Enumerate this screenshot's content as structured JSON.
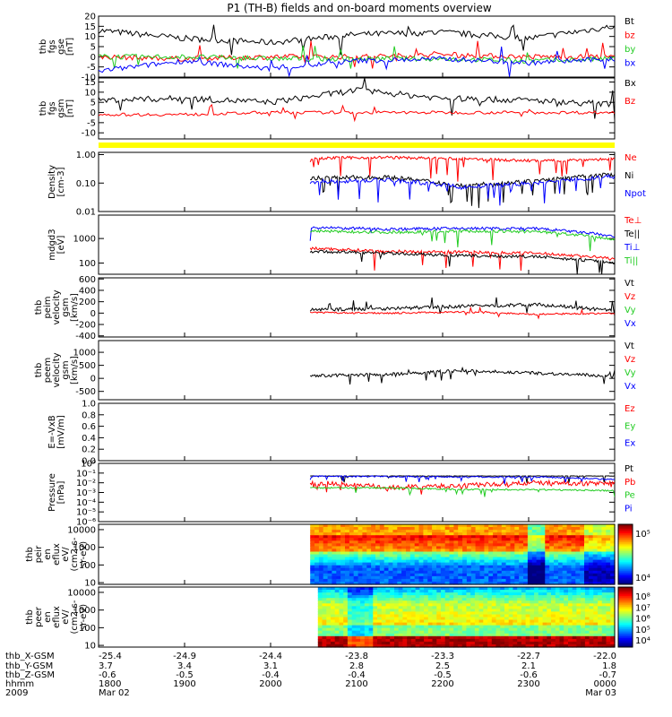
{
  "title": "P1 (TH-B) fields and on-board moments overview",
  "colors": {
    "black": "#000000",
    "red": "#ff0000",
    "green": "#22cc22",
    "blue": "#0000ff",
    "yellow": "#ffff00"
  },
  "panels": [
    {
      "id": "fgs",
      "ylabel": [
        "thb",
        "fgs",
        "gse",
        "[nT]"
      ],
      "scale": "linear",
      "ticks": [
        [
          20,
          "20"
        ],
        [
          15,
          "15"
        ],
        [
          10,
          "10"
        ],
        [
          5,
          "5"
        ],
        [
          0,
          "0"
        ],
        [
          -5,
          "-5"
        ],
        [
          -10,
          "-10"
        ]
      ],
      "ylim": [
        -10,
        20
      ],
      "legend": [
        [
          "Bt",
          "black"
        ],
        [
          "bz",
          "red"
        ],
        [
          "by",
          "green"
        ],
        [
          "bx",
          "blue"
        ]
      ]
    },
    {
      "id": "fgs_gsm",
      "ylabel": [
        "thb",
        "fgs",
        "gsm",
        "[nT]"
      ],
      "scale": "linear",
      "ticks": [
        [
          15,
          "15"
        ],
        [
          10,
          "10"
        ],
        [
          5,
          "5"
        ],
        [
          0,
          "0"
        ],
        [
          -5,
          "-5"
        ],
        [
          -10,
          "-10"
        ]
      ],
      "ylim": [
        -13,
        17
      ],
      "legend": [
        [
          "Bx",
          "black"
        ],
        [
          "Bz",
          "red"
        ]
      ]
    },
    {
      "id": "density",
      "ylabel": [
        "Density",
        "[cm-3]"
      ],
      "scale": "log",
      "ticks": [
        [
          1,
          "1.00"
        ],
        [
          0.1,
          "0.10"
        ],
        [
          0.01,
          "0.01"
        ]
      ],
      "ylim": [
        0.01,
        1.2
      ],
      "legend": [
        [
          "Ne",
          "red"
        ],
        [
          "Ni",
          "black"
        ],
        [
          "Npot",
          "blue"
        ]
      ]
    },
    {
      "id": "temp",
      "ylabel": [
        "mdgd3",
        "[eV]"
      ],
      "scale": "log",
      "ticks": [
        [
          1000,
          "1000"
        ],
        [
          100,
          "100"
        ]
      ],
      "ylim": [
        35,
        9000
      ],
      "legend": [
        [
          "Te⊥",
          "red"
        ],
        [
          "Te||",
          "black"
        ],
        [
          "Ti⊥",
          "blue"
        ],
        [
          "Ti||",
          "green"
        ]
      ]
    },
    {
      "id": "peim",
      "ylabel": [
        "thb",
        "peim",
        "velocity",
        "gsm",
        "[km/s]"
      ],
      "scale": "linear",
      "ticks": [
        [
          600,
          "600"
        ],
        [
          400,
          "400"
        ],
        [
          200,
          "200"
        ],
        [
          0,
          "0"
        ],
        [
          -200,
          "-200"
        ],
        [
          -400,
          "-400"
        ]
      ],
      "ylim": [
        -420,
        620
      ],
      "legend": [
        [
          "Vt",
          "black"
        ],
        [
          "Vz",
          "red"
        ],
        [
          "Vy",
          "green"
        ],
        [
          "Vx",
          "blue"
        ]
      ]
    },
    {
      "id": "peem",
      "ylabel": [
        "thb",
        "peem",
        "velocity",
        "gsm",
        "[km/s]"
      ],
      "scale": "linear",
      "ticks": [
        [
          1000,
          "1000"
        ],
        [
          500,
          "500"
        ],
        [
          0,
          "0"
        ],
        [
          -500,
          "-500"
        ]
      ],
      "ylim": [
        -820,
        1450
      ],
      "legend": [
        [
          "Vt",
          "black"
        ],
        [
          "Vz",
          "red"
        ],
        [
          "Vy",
          "green"
        ],
        [
          "Vx",
          "blue"
        ]
      ]
    },
    {
      "id": "efield",
      "ylabel": [
        "E=-VxB",
        "[mV/m]"
      ],
      "scale": "linear",
      "ticks": [
        [
          1.0,
          "1.0"
        ],
        [
          0.8,
          "0.8"
        ],
        [
          0.6,
          "0.6"
        ],
        [
          0.4,
          "0.4"
        ],
        [
          0.2,
          "0.2"
        ],
        [
          0.0,
          "0.0"
        ]
      ],
      "ylim": [
        0.0,
        1.0
      ],
      "legend": [
        [
          "Ez",
          "red"
        ],
        [
          "Ey",
          "green"
        ],
        [
          "Ex",
          "blue"
        ]
      ]
    },
    {
      "id": "pressure",
      "ylabel": [
        "Pressure",
        "[nPa]"
      ],
      "scale": "log",
      "ticks": [
        [
          1,
          "10⁰"
        ],
        [
          0.1,
          "10⁻¹"
        ],
        [
          0.01,
          "10⁻²"
        ],
        [
          0.001,
          "10⁻³"
        ],
        [
          0.0001,
          "10⁻⁴"
        ],
        [
          1e-05,
          "10⁻⁵"
        ],
        [
          1e-06,
          "10⁻⁶"
        ]
      ],
      "ylim": [
        1e-06,
        1
      ],
      "legend": [
        [
          "Pt",
          "black"
        ],
        [
          "Pb",
          "red"
        ],
        [
          "Pe",
          "green"
        ],
        [
          "Pi",
          "blue"
        ]
      ]
    },
    {
      "id": "peir",
      "ylabel": [
        "thb",
        "peir",
        "en",
        "eflux",
        "eV/",
        "(cm2-s-",
        "sr-eV)"
      ],
      "scale": "log",
      "ticks": [
        [
          10000,
          "10000"
        ],
        [
          1000,
          "1000"
        ],
        [
          100,
          "100"
        ],
        [
          10,
          "10"
        ]
      ],
      "ylim": [
        8,
        20000
      ],
      "colorbar": [
        "10⁵",
        "10⁴"
      ]
    },
    {
      "id": "peer",
      "ylabel": [
        "thb",
        "peer",
        "en",
        "eflux",
        "eV/",
        "(cm2-s-",
        "sr-eV)"
      ],
      "scale": "log",
      "ticks": [
        [
          10000,
          "10000"
        ],
        [
          1000,
          "1000"
        ],
        [
          100,
          "100"
        ],
        [
          10,
          "10"
        ]
      ],
      "ylim": [
        8,
        20000
      ],
      "colorbar": [
        "10⁸",
        "10⁷",
        "10⁶",
        "10⁵",
        "10⁴"
      ]
    }
  ],
  "footer": {
    "row_labels": [
      "thb_X-GSM",
      "thb_Y-GSM",
      "thb_Z-GSM",
      "hhmm",
      "2009"
    ],
    "columns": [
      [
        "-25.4",
        "3.7",
        "-0.6",
        "1800",
        "Mar 02"
      ],
      [
        "-24.9",
        "3.4",
        "-0.5",
        "1900",
        ""
      ],
      [
        "-24.4",
        "3.1",
        "-0.4",
        "2000",
        ""
      ],
      [
        "-23.8",
        "2.8",
        "-0.4",
        "2100",
        ""
      ],
      [
        "-23.3",
        "2.5",
        "-0.5",
        "2200",
        ""
      ],
      [
        "-22.7",
        "2.1",
        "-0.6",
        "2300",
        ""
      ],
      [
        "-22.0",
        "1.8",
        "-0.7",
        "0000",
        "Mar 03"
      ]
    ]
  },
  "chart_data": [
    {
      "type": "line",
      "title": "P1 (TH-B) fields and on-board moments overview",
      "ylabel": "thb fgs gse [nT]",
      "x": [
        "1800",
        "1900",
        "2000",
        "2100",
        "2200",
        "2300",
        "0000"
      ],
      "ylim": [
        -10,
        20
      ],
      "series": [
        {
          "name": "Bt",
          "values": [
            13,
            9,
            7,
            11,
            12,
            9,
            15
          ]
        },
        {
          "name": "bz",
          "values": [
            0,
            -1,
            0,
            0,
            1,
            0,
            0
          ]
        },
        {
          "name": "by",
          "values": [
            0,
            0,
            -1,
            -1,
            -1,
            -2,
            -1
          ]
        },
        {
          "name": "bx",
          "values": [
            -7,
            -2,
            -6,
            -2,
            -1,
            -3,
            -1
          ]
        }
      ]
    },
    {
      "type": "line",
      "ylabel": "thb fgs gsm [nT]",
      "x": [
        "1800",
        "1900",
        "2000",
        "2100",
        "2200",
        "2300",
        "0000"
      ],
      "ylim": [
        -13,
        17
      ],
      "series": [
        {
          "name": "Bx",
          "values": [
            6,
            7,
            5,
            11,
            7,
            6,
            4
          ]
        },
        {
          "name": "Bz",
          "values": [
            -1,
            -1,
            0,
            0,
            0,
            0,
            0
          ]
        }
      ]
    },
    {
      "type": "line",
      "ylabel": "Density [cm-3]",
      "x": [
        "2045",
        "2100",
        "2200",
        "2300",
        "0000"
      ],
      "series": [
        {
          "name": "Ne",
          "values": [
            0.75,
            0.8,
            0.7,
            0.6,
            0.7
          ]
        },
        {
          "name": "Ni",
          "values": [
            0.15,
            0.16,
            0.08,
            0.12,
            0.2
          ]
        },
        {
          "name": "Npot",
          "values": [
            0.11,
            0.13,
            0.07,
            0.1,
            0.17
          ]
        }
      ]
    },
    {
      "type": "line",
      "ylabel": "mdgd3 [eV]",
      "x": [
        "2045",
        "2100",
        "2200",
        "2300",
        "0000"
      ],
      "series": [
        {
          "name": "Ti⊥",
          "values": [
            2800,
            2400,
            2600,
            2500,
            1200
          ]
        },
        {
          "name": "Ti||",
          "values": [
            2000,
            1800,
            2000,
            1900,
            900
          ]
        },
        {
          "name": "Te⊥",
          "values": [
            400,
            300,
            280,
            250,
            150
          ]
        },
        {
          "name": "Te||",
          "values": [
            300,
            250,
            200,
            180,
            100
          ]
        }
      ]
    },
    {
      "type": "line",
      "ylabel": "thb peim velocity gsm [km/s]",
      "x": [
        "2045",
        "2100",
        "2200",
        "2300",
        "0000"
      ],
      "ylim": [
        -400,
        600
      ],
      "series": [
        {
          "name": "Vt",
          "values": [
            60,
            80,
            120,
            150,
            40
          ]
        },
        {
          "name": "Vz",
          "values": [
            10,
            0,
            20,
            -20,
            0
          ]
        }
      ]
    },
    {
      "type": "line",
      "ylabel": "thb peem velocity gsm [km/s]",
      "x": [
        "2045",
        "2100",
        "2200",
        "2300",
        "0000"
      ],
      "ylim": [
        -800,
        1450
      ],
      "series": [
        {
          "name": "Vt",
          "values": [
            100,
            150,
            300,
            200,
            80
          ]
        }
      ]
    },
    {
      "type": "line",
      "ylabel": "Pressure [nPa]",
      "x": [
        "2045",
        "2100",
        "2200",
        "2300",
        "0000"
      ],
      "series": [
        {
          "name": "Pt",
          "values": [
            0.05,
            0.05,
            0.05,
            0.05,
            0.05
          ]
        },
        {
          "name": "Pb",
          "values": [
            0.01,
            0.003,
            0.005,
            0.01,
            0.008
          ]
        },
        {
          "name": "Pe",
          "values": [
            0.003,
            0.003,
            0.002,
            0.002,
            0.0015
          ]
        },
        {
          "name": "Pi",
          "values": [
            0.045,
            0.045,
            0.04,
            0.04,
            0.02
          ]
        }
      ]
    },
    {
      "type": "heatmap",
      "ylabel": "thb peir en eflux eV/(cm2-s-sr-eV)",
      "x": [
        "2045",
        "0000"
      ],
      "ylim": [
        8,
        20000
      ]
    },
    {
      "type": "heatmap",
      "ylabel": "thb peer en eflux eV/(cm2-s-sr-eV)",
      "x": [
        "2045",
        "0000"
      ],
      "ylim": [
        8,
        20000
      ]
    }
  ]
}
